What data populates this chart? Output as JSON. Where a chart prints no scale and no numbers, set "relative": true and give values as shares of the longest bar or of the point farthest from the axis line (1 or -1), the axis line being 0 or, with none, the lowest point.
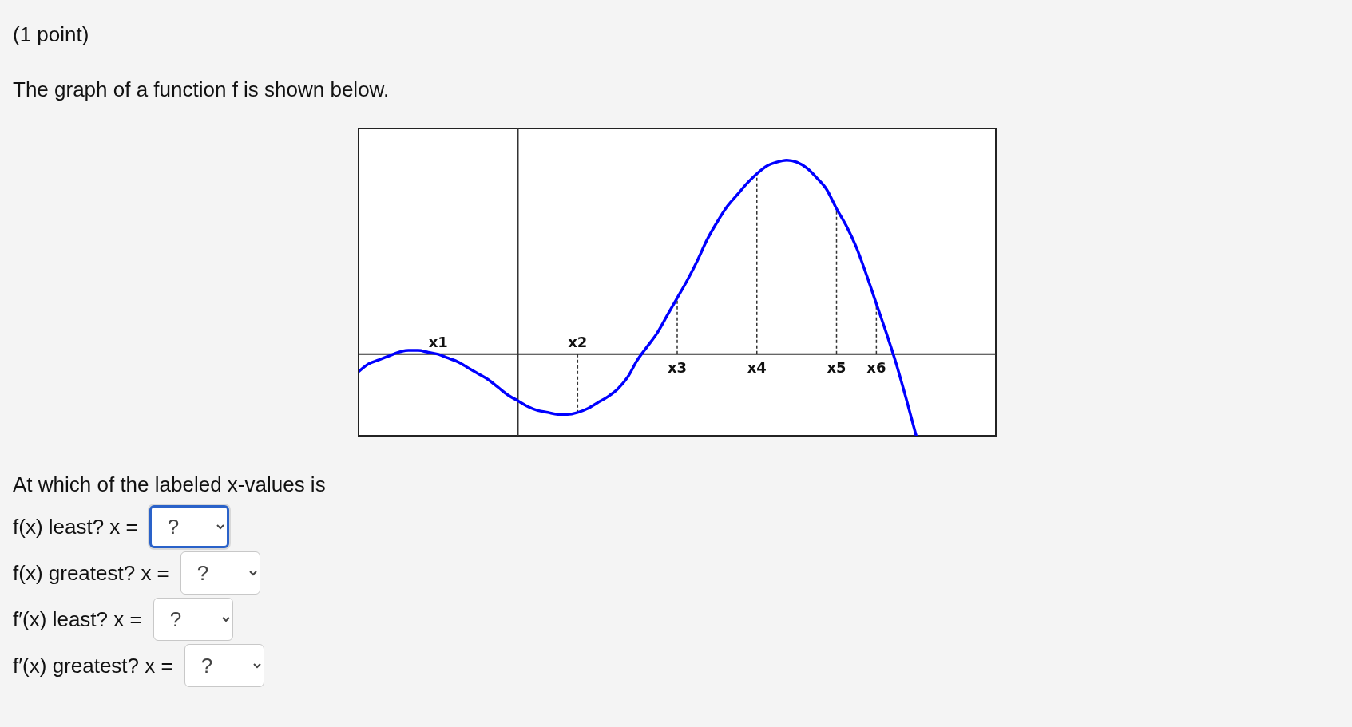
{
  "chart_data": {
    "type": "line",
    "title": "(1 point)",
    "subtitle": "The graph of a function f is shown below.",
    "categories": [
      null,
      null,
      null,
      null,
      null,
      null,
      null,
      null,
      "x1",
      null,
      null,
      null,
      null,
      null,
      null,
      null,
      null,
      null,
      null,
      null,
      null,
      null,
      "x2",
      null,
      null,
      null,
      null,
      null,
      null,
      null,
      null,
      null,
      "x3",
      null,
      null,
      null,
      null,
      null,
      null,
      null,
      "x4",
      null,
      null,
      null,
      null,
      null,
      null,
      null,
      "x5",
      null,
      null,
      null,
      "x6",
      null,
      null,
      null,
      null,
      null,
      null,
      null,
      null,
      null,
      null,
      null,
      null
    ],
    "values": [
      -0.09,
      -0.05,
      -0.03,
      -0.01,
      0.01,
      0.02,
      0.02,
      0.01,
      0,
      -0.02,
      -0.04,
      -0.07,
      -0.1,
      -0.13,
      -0.17,
      -0.21,
      -0.24,
      -0.27,
      -0.29,
      -0.3,
      -0.31,
      -0.31,
      -0.3,
      -0.28,
      -0.25,
      -0.22,
      -0.18,
      -0.12,
      -0.03,
      0.04,
      0.11,
      0.2,
      0.29,
      0.38,
      0.48,
      0.59,
      0.68,
      0.76,
      0.82,
      0.88,
      0.93,
      0.97,
      0.99,
      1,
      0.99,
      0.96,
      0.91,
      0.85,
      0.75,
      0.66,
      0.55,
      0.41,
      0.26,
      0.11,
      -0.05,
      -0.23,
      -0.42,
      null,
      null,
      null,
      null,
      null,
      null,
      null,
      null
    ],
    "color": "#0000ff",
    "relative": true,
    "ref_lines": [
      {
        "axis": "x",
        "value": "x2",
        "line_style": "dashed"
      },
      {
        "axis": "x",
        "value": "x3",
        "line_style": "dashed"
      },
      {
        "axis": "x",
        "value": "x4",
        "line_style": "dashed"
      },
      {
        "axis": "x",
        "value": "x5",
        "line_style": "dashed"
      },
      {
        "axis": "x",
        "value": "x6",
        "line_style": "dashed"
      }
    ],
    "annotations": [
      "At which of the labeled x-values is",
      "f(x) least? x =",
      "?",
      "f(x) greatest? x =",
      "?",
      "f′(x) least? x =",
      "?",
      "f′(x) greatest? x =",
      "?"
    ]
  }
}
